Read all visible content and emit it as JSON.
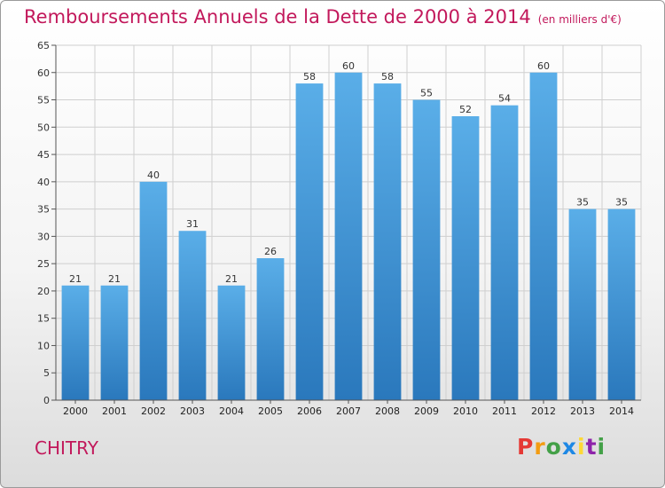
{
  "title": "Remboursements Annuels de la Dette de 2000 à 2014",
  "unit_note": "(en milliers d'€)",
  "commune": "CHITRY",
  "logo": {
    "letters": [
      "P",
      "r",
      "o",
      "x",
      "i",
      "t",
      "i"
    ],
    "colors": [
      "#e53935",
      "#f39c12",
      "#43a047",
      "#1e88e5",
      "#fdd835",
      "#8e24aa",
      "#43a047"
    ]
  },
  "colors": {
    "accent": "#c2185b",
    "bar_light": "#5aaee8",
    "bar_dark": "#2a78bc",
    "grid": "#cfcfcf"
  },
  "chart_data": {
    "type": "bar",
    "categories": [
      "2000",
      "2001",
      "2002",
      "2003",
      "2004",
      "2005",
      "2006",
      "2007",
      "2008",
      "2009",
      "2010",
      "2011",
      "2012",
      "2013",
      "2014"
    ],
    "values": [
      21,
      21,
      40,
      31,
      21,
      26,
      58,
      60,
      58,
      55,
      52,
      54,
      60,
      35,
      35
    ],
    "data_labels": [
      "21",
      "21",
      "40",
      "31",
      "21",
      "26",
      "58",
      "60",
      "58",
      "55",
      "52",
      "54",
      "60",
      "35",
      "35"
    ],
    "ylim": [
      0,
      65
    ],
    "yticks": [
      0,
      5,
      10,
      15,
      20,
      25,
      30,
      35,
      40,
      45,
      50,
      55,
      60,
      65
    ],
    "grid": true,
    "legend": "none"
  }
}
